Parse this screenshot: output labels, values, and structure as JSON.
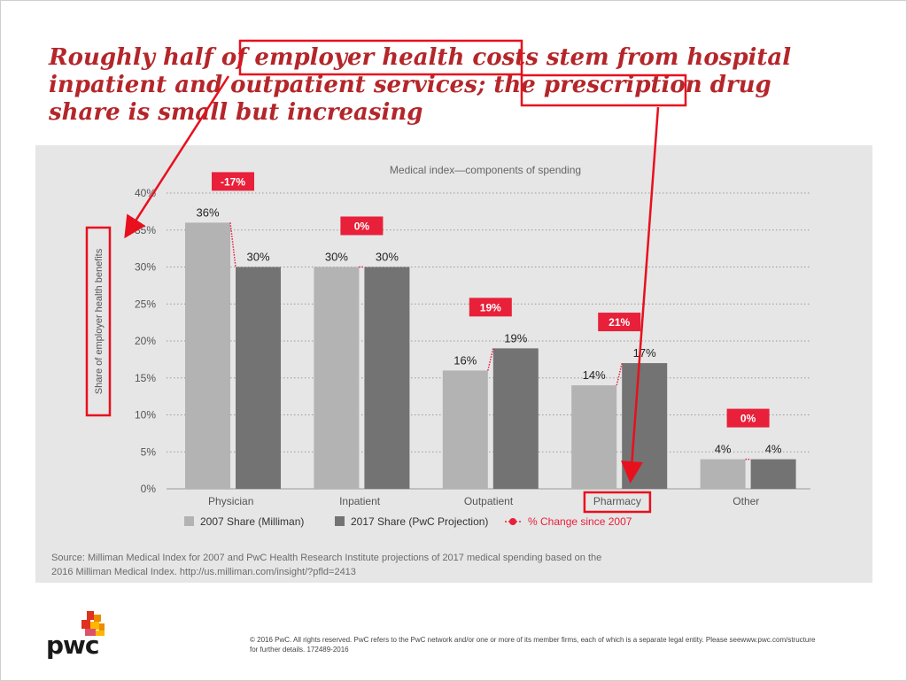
{
  "slide": {
    "headline_lines": [
      "Roughly half of employer health costs stem from hospital",
      "inpatient and outpatient services; the prescription drug",
      "share is small but increasing"
    ],
    "source_lines": [
      "Source: Milliman Medical Index for 2007 and PwC Health Research Institute projections of 2017 medical spending based on the",
      "2016 Milliman Medical Index. http://us.milliman.com/insight/?pfld=2413"
    ],
    "footer_lines": [
      "© 2016 PwC. All rights reserved. PwC refers to the PwC network and/or one or more of its member firms, each of which is a separate legal entity. Please seewww.pwc.com/structure",
      "for further details. 172489-2016"
    ],
    "logo_text": "pwc"
  },
  "colors": {
    "headline": "#b4262a",
    "annotation": "#e8101e",
    "series_2007": "#b3b3b3",
    "series_2017": "#737373",
    "change_badge": "#e8203a"
  },
  "chart_data": {
    "type": "bar",
    "title": "Medical index—components of spending",
    "ylabel": "Share of employer health benefits",
    "xlabel": "",
    "ylim": [
      0,
      40
    ],
    "yticks": [
      "0%",
      "5%",
      "10%",
      "15%",
      "20%",
      "25%",
      "30%",
      "35%",
      "40%"
    ],
    "grid": true,
    "categories": [
      "Physician",
      "Inpatient",
      "Outpatient",
      "Pharmacy",
      "Other"
    ],
    "series": [
      {
        "name": "2007 Share (Milliman)",
        "values": [
          36,
          30,
          16,
          14,
          4
        ],
        "labels": [
          "36%",
          "30%",
          "16%",
          "14%",
          "4%"
        ]
      },
      {
        "name": "2017 Share (PwC Projection)",
        "values": [
          30,
          30,
          19,
          17,
          4
        ],
        "labels": [
          "30%",
          "30%",
          "19%",
          "17%",
          "4%"
        ]
      }
    ],
    "change_series_name": "% Change since 2007",
    "change_labels": [
      "-17%",
      "0%",
      "19%",
      "21%",
      "0%"
    ],
    "legend_position": "bottom",
    "highlighted_category": "Pharmacy"
  }
}
